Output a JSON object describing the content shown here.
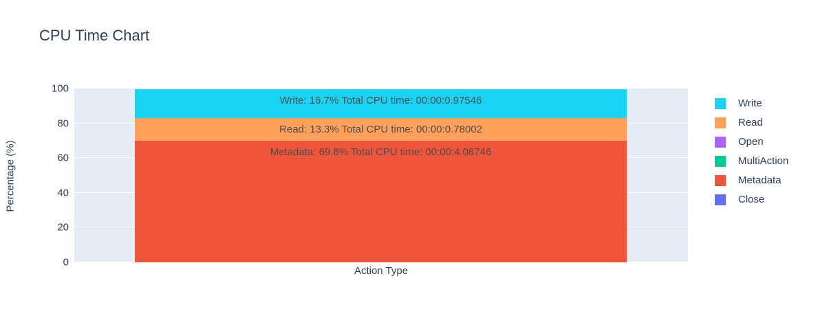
{
  "chart_data": {
    "type": "bar",
    "barmode": "stack",
    "title": "CPU Time Chart",
    "xlabel": "Action Type",
    "ylabel": "Percentage (%)",
    "ylim": [
      0,
      100
    ],
    "yticks": [
      0,
      20,
      40,
      60,
      80,
      100
    ],
    "categories": [
      ""
    ],
    "grid": true,
    "plot_bgcolor": "#e5ecf6",
    "paper_bgcolor": "#ffffff",
    "gridline_color": "#ffffff",
    "font_color": "#2a3f5f",
    "bar_label_color": "#4c4c4c",
    "series": [
      {
        "name": "Close",
        "values": [
          0
        ],
        "color": "#636EFA"
      },
      {
        "name": "Metadata",
        "values": [
          69.8
        ],
        "color": "#EF553B",
        "percent": "69.8%",
        "total_cpu_time": "00:00:4.08746",
        "bar_label": "Metadata: 69.8% Total CPU time: 00:00:4.08746"
      },
      {
        "name": "MultiAction",
        "values": [
          0
        ],
        "color": "#00CC96"
      },
      {
        "name": "Open",
        "values": [
          0
        ],
        "color": "#AB63FA"
      },
      {
        "name": "Read",
        "values": [
          13.3
        ],
        "color": "#FFA15A",
        "percent": "13.3%",
        "total_cpu_time": "00:00:0.78002",
        "bar_label": "Read: 13.3% Total CPU time: 00:00:0.78002"
      },
      {
        "name": "Write",
        "values": [
          16.7
        ],
        "color": "#19D3F3",
        "percent": "16.7%",
        "total_cpu_time": "00:00:0.97546",
        "bar_label": "Write: 16.7% Total CPU time: 00:00:0.97546"
      }
    ],
    "legend": {
      "position": "right",
      "items": [
        "Write",
        "Read",
        "Open",
        "MultiAction",
        "Metadata",
        "Close"
      ]
    }
  }
}
